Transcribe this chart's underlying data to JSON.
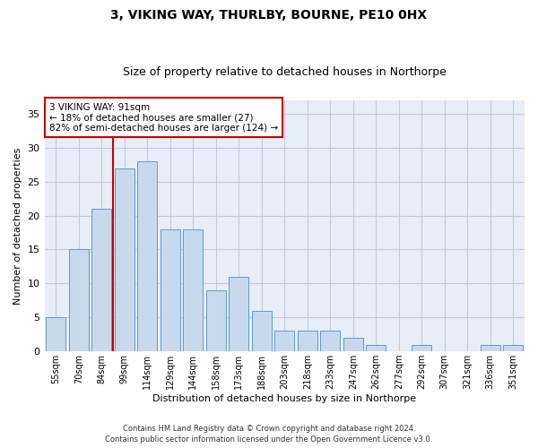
{
  "title1": "3, VIKING WAY, THURLBY, BOURNE, PE10 0HX",
  "title2": "Size of property relative to detached houses in Northorpe",
  "xlabel": "Distribution of detached houses by size in Northorpe",
  "ylabel": "Number of detached properties",
  "categories": [
    "55sqm",
    "70sqm",
    "84sqm",
    "99sqm",
    "114sqm",
    "129sqm",
    "144sqm",
    "158sqm",
    "173sqm",
    "188sqm",
    "203sqm",
    "218sqm",
    "233sqm",
    "247sqm",
    "262sqm",
    "277sqm",
    "292sqm",
    "307sqm",
    "321sqm",
    "336sqm",
    "351sqm"
  ],
  "values": [
    5,
    15,
    21,
    27,
    28,
    18,
    18,
    9,
    11,
    6,
    3,
    3,
    3,
    2,
    1,
    0,
    1,
    0,
    0,
    1,
    1
  ],
  "bar_color": "#c8d9ed",
  "bar_edge_color": "#5b9bd5",
  "grid_color": "#c8c8d8",
  "background_color": "#e8eef8",
  "vline_color": "#cc0000",
  "annotation_text": "3 VIKING WAY: 91sqm\n← 18% of detached houses are smaller (27)\n82% of semi-detached houses are larger (124) →",
  "annotation_box_color": "#ffffff",
  "annotation_box_edge": "#cc0000",
  "ylim": [
    0,
    37
  ],
  "yticks": [
    0,
    5,
    10,
    15,
    20,
    25,
    30,
    35
  ],
  "footer1": "Contains HM Land Registry data © Crown copyright and database right 2024.",
  "footer2": "Contains public sector information licensed under the Open Government Licence v3.0."
}
